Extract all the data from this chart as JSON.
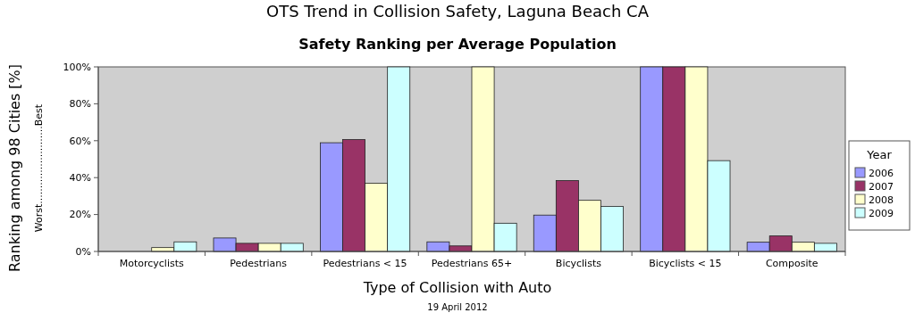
{
  "chart_data": {
    "type": "bar",
    "title": "OTS Trend in Collision Safety, Laguna Beach CA",
    "subtitle": "Safety Ranking per Average Population",
    "xlabel": "Type of Collision with Auto",
    "ylabel": "Ranking among 98 Cities [%]",
    "annotations": [
      "Worst.........................Best",
      "19 April 2012"
    ],
    "categories": [
      "Motorcyclists",
      "Pedestrians",
      "Pedestrians < 15",
      "Pedestrians 65+",
      "Bicyclists",
      "Bicyclists < 15",
      "Composite"
    ],
    "series": [
      {
        "name": "2006",
        "color": "#9999ff",
        "values": [
          0,
          7.3,
          58.9,
          5.2,
          19.7,
          100,
          5
        ]
      },
      {
        "name": "2007",
        "color": "#993366",
        "values": [
          0,
          4.4,
          60.6,
          3,
          38.4,
          100,
          8.4
        ]
      },
      {
        "name": "2008",
        "color": "#ffffcc",
        "values": [
          2.1,
          4.4,
          37,
          100,
          27.7,
          100,
          5
        ]
      },
      {
        "name": "2009",
        "color": "#ccffff",
        "values": [
          5.2,
          4.4,
          100,
          15.3,
          24.4,
          49.2,
          4.4
        ]
      }
    ],
    "ylim": [
      0,
      100
    ],
    "yticks": [
      {
        "value": 0,
        "label": "0%"
      },
      {
        "value": 20,
        "label": "20%"
      },
      {
        "value": 40,
        "label": "40%"
      },
      {
        "value": 60,
        "label": "60%"
      },
      {
        "value": 80,
        "label": "80%"
      },
      {
        "value": 100,
        "label": "100%"
      }
    ],
    "legend": "right",
    "legend_title": "Year",
    "grid": false
  }
}
